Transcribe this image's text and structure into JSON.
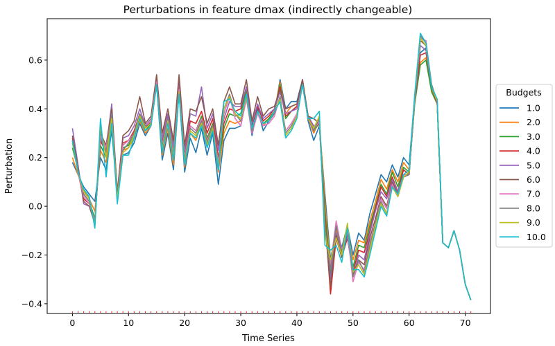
{
  "chart_data": {
    "type": "line",
    "title": "Perturbations in feature dmax (indirectly changeable)",
    "xlabel": "Time Series",
    "ylabel": "Perturbation",
    "xlim": [
      -4.5,
      74.5
    ],
    "ylim": [
      -0.44,
      0.77
    ],
    "xticks": [
      0,
      10,
      20,
      30,
      40,
      50,
      60,
      70
    ],
    "yticks": [
      -0.4,
      -0.2,
      0.0,
      0.2,
      0.4,
      0.6
    ],
    "ytick_labels": [
      "−0.4",
      "−0.2",
      "0.0",
      "0.2",
      "0.4",
      "0.6"
    ],
    "grid": false,
    "red_tick_marks_x_range": [
      0,
      71
    ],
    "legend": {
      "title": "Budgets",
      "placement": "outside-right"
    },
    "x": [
      0,
      1,
      2,
      3,
      4,
      5,
      6,
      7,
      8,
      9,
      10,
      11,
      12,
      13,
      14,
      15,
      16,
      17,
      18,
      19,
      20,
      21,
      22,
      23,
      24,
      25,
      26,
      27,
      28,
      29,
      30,
      31,
      32,
      33,
      34,
      35,
      36,
      37,
      38,
      39,
      40,
      41,
      42,
      43,
      44,
      45,
      46,
      47,
      48,
      49,
      50,
      51,
      52,
      53,
      54,
      55,
      56,
      57,
      58,
      59,
      60,
      61,
      62,
      63,
      64,
      65,
      66,
      67,
      68,
      69,
      70,
      71
    ],
    "series": [
      {
        "name": "1.0",
        "color": "#1f77b4",
        "values": [
          0.18,
          0.13,
          0.08,
          0.05,
          0.02,
          0.2,
          0.15,
          0.31,
          0.05,
          0.21,
          0.22,
          0.26,
          0.34,
          0.29,
          0.33,
          0.5,
          0.19,
          0.3,
          0.15,
          0.47,
          0.14,
          0.28,
          0.22,
          0.32,
          0.21,
          0.3,
          0.09,
          0.27,
          0.32,
          0.32,
          0.33,
          0.46,
          0.29,
          0.4,
          0.31,
          0.35,
          0.38,
          0.52,
          0.4,
          0.43,
          0.43,
          0.52,
          0.35,
          0.27,
          0.33,
          0.05,
          -0.22,
          -0.09,
          -0.17,
          -0.08,
          -0.2,
          -0.11,
          -0.14,
          -0.03,
          0.05,
          0.13,
          0.1,
          0.17,
          0.12,
          0.2,
          0.17,
          0.45,
          0.63,
          0.65,
          0.5,
          0.42,
          -0.15,
          -0.17,
          -0.1,
          -0.18,
          -0.32,
          -0.385
        ]
      },
      {
        "name": "2.0",
        "color": "#ff7f0e",
        "values": [
          0.2,
          0.13,
          0.07,
          0.03,
          -0.02,
          0.23,
          0.18,
          0.33,
          0.04,
          0.23,
          0.24,
          0.28,
          0.35,
          0.3,
          0.33,
          0.51,
          0.21,
          0.32,
          0.17,
          0.48,
          0.16,
          0.3,
          0.27,
          0.34,
          0.24,
          0.32,
          0.14,
          0.3,
          0.35,
          0.34,
          0.35,
          0.47,
          0.31,
          0.39,
          0.33,
          0.36,
          0.39,
          0.51,
          0.38,
          0.41,
          0.42,
          0.51,
          0.36,
          0.3,
          0.35,
          0.02,
          -0.25,
          -0.1,
          -0.19,
          -0.1,
          -0.22,
          -0.14,
          -0.15,
          -0.06,
          0.02,
          0.11,
          0.07,
          0.15,
          0.1,
          0.18,
          0.15,
          0.43,
          0.59,
          0.61,
          0.48,
          0.42,
          -0.15,
          -0.17,
          -0.1,
          -0.18,
          -0.32,
          -0.385
        ]
      },
      {
        "name": "3.0",
        "color": "#2ca02c",
        "values": [
          0.24,
          0.15,
          0.05,
          0.02,
          -0.05,
          0.25,
          0.2,
          0.35,
          0.04,
          0.24,
          0.25,
          0.29,
          0.36,
          0.31,
          0.34,
          0.51,
          0.24,
          0.35,
          0.2,
          0.48,
          0.19,
          0.33,
          0.31,
          0.37,
          0.28,
          0.34,
          0.18,
          0.32,
          0.38,
          0.37,
          0.38,
          0.48,
          0.32,
          0.39,
          0.34,
          0.36,
          0.39,
          0.5,
          0.36,
          0.39,
          0.41,
          0.5,
          0.36,
          0.31,
          0.34,
          -0.02,
          -0.28,
          -0.12,
          -0.2,
          -0.12,
          -0.25,
          -0.16,
          -0.17,
          -0.08,
          0.0,
          0.09,
          0.05,
          0.14,
          0.08,
          0.16,
          0.14,
          0.42,
          0.58,
          0.6,
          0.47,
          0.42,
          -0.15,
          -0.17,
          -0.1,
          -0.18,
          -0.32,
          -0.385
        ]
      },
      {
        "name": "4.0",
        "color": "#d62728",
        "values": [
          0.28,
          0.14,
          0.03,
          0.01,
          -0.06,
          0.27,
          0.22,
          0.38,
          0.05,
          0.26,
          0.27,
          0.31,
          0.38,
          0.32,
          0.35,
          0.52,
          0.26,
          0.37,
          0.23,
          0.51,
          0.21,
          0.35,
          0.34,
          0.39,
          0.3,
          0.36,
          0.2,
          0.34,
          0.4,
          0.39,
          0.4,
          0.49,
          0.33,
          0.41,
          0.35,
          0.37,
          0.4,
          0.49,
          0.37,
          0.39,
          0.41,
          0.52,
          0.37,
          0.32,
          0.34,
          -0.05,
          -0.36,
          -0.13,
          -0.21,
          -0.13,
          -0.27,
          -0.18,
          -0.19,
          -0.1,
          -0.01,
          0.08,
          0.04,
          0.12,
          0.06,
          0.15,
          0.13,
          0.43,
          0.62,
          0.63,
          0.49,
          0.42,
          -0.15,
          -0.17,
          -0.1,
          -0.18,
          -0.32,
          -0.385
        ]
      },
      {
        "name": "5.0",
        "color": "#9467bd",
        "values": [
          0.32,
          0.17,
          0.01,
          0.0,
          -0.07,
          0.28,
          0.23,
          0.42,
          0.06,
          0.28,
          0.29,
          0.33,
          0.4,
          0.33,
          0.36,
          0.52,
          0.28,
          0.38,
          0.25,
          0.52,
          0.23,
          0.38,
          0.37,
          0.49,
          0.32,
          0.38,
          0.23,
          0.36,
          0.43,
          0.41,
          0.41,
          0.49,
          0.34,
          0.42,
          0.36,
          0.38,
          0.4,
          0.47,
          0.38,
          0.39,
          0.4,
          0.51,
          0.37,
          0.33,
          0.34,
          -0.07,
          -0.3,
          -0.11,
          -0.2,
          -0.12,
          -0.29,
          -0.2,
          -0.22,
          -0.11,
          -0.02,
          0.06,
          0.03,
          0.11,
          0.06,
          0.13,
          0.13,
          0.43,
          0.66,
          0.64,
          0.49,
          0.43,
          -0.15,
          -0.17,
          -0.1,
          -0.18,
          -0.32,
          -0.385
        ]
      },
      {
        "name": "6.0",
        "color": "#8c564b",
        "values": [
          0.29,
          0.16,
          0.02,
          0.0,
          -0.07,
          0.3,
          0.25,
          0.4,
          0.06,
          0.29,
          0.31,
          0.35,
          0.45,
          0.34,
          0.37,
          0.54,
          0.3,
          0.4,
          0.27,
          0.54,
          0.25,
          0.4,
          0.39,
          0.45,
          0.34,
          0.4,
          0.25,
          0.43,
          0.49,
          0.42,
          0.42,
          0.52,
          0.35,
          0.45,
          0.37,
          0.4,
          0.41,
          0.48,
          0.4,
          0.41,
          0.42,
          0.52,
          0.37,
          0.36,
          0.34,
          -0.08,
          -0.33,
          -0.12,
          -0.21,
          -0.11,
          -0.28,
          -0.22,
          -0.24,
          -0.13,
          -0.05,
          0.04,
          0.0,
          0.1,
          0.05,
          0.12,
          0.13,
          0.44,
          0.68,
          0.66,
          0.49,
          0.43,
          -0.15,
          -0.17,
          -0.1,
          -0.18,
          -0.32,
          -0.385
        ]
      },
      {
        "name": "7.0",
        "color": "#e377c2",
        "values": [
          0.27,
          0.14,
          0.04,
          0.01,
          -0.06,
          0.29,
          0.24,
          0.37,
          0.05,
          0.25,
          0.27,
          0.3,
          0.37,
          0.33,
          0.35,
          0.51,
          0.25,
          0.36,
          0.22,
          0.48,
          0.2,
          0.33,
          0.31,
          0.36,
          0.27,
          0.33,
          0.18,
          0.38,
          0.45,
          0.36,
          0.33,
          0.44,
          0.3,
          0.38,
          0.33,
          0.34,
          0.37,
          0.45,
          0.31,
          0.34,
          0.38,
          0.5,
          0.36,
          0.31,
          0.35,
          -0.1,
          -0.24,
          -0.06,
          -0.18,
          -0.1,
          -0.31,
          -0.23,
          -0.26,
          -0.15,
          -0.07,
          0.03,
          -0.01,
          0.09,
          0.04,
          0.12,
          0.13,
          0.44,
          0.69,
          0.68,
          0.5,
          0.43,
          -0.15,
          -0.17,
          -0.1,
          -0.18,
          -0.32,
          -0.385
        ]
      },
      {
        "name": "8.0",
        "color": "#7f7f7f",
        "values": [
          0.27,
          0.15,
          0.05,
          0.02,
          -0.07,
          0.31,
          0.22,
          0.38,
          0.05,
          0.23,
          0.26,
          0.3,
          0.38,
          0.33,
          0.34,
          0.5,
          0.24,
          0.36,
          0.21,
          0.47,
          0.19,
          0.32,
          0.3,
          0.35,
          0.26,
          0.33,
          0.16,
          0.4,
          0.46,
          0.38,
          0.35,
          0.45,
          0.31,
          0.39,
          0.34,
          0.35,
          0.38,
          0.45,
          0.3,
          0.33,
          0.37,
          0.5,
          0.36,
          0.31,
          0.36,
          -0.1,
          -0.26,
          -0.08,
          -0.19,
          -0.08,
          -0.29,
          -0.22,
          -0.27,
          -0.16,
          -0.07,
          0.02,
          -0.03,
          0.08,
          0.04,
          0.12,
          0.13,
          0.44,
          0.7,
          0.67,
          0.5,
          0.43,
          -0.15,
          -0.17,
          -0.1,
          -0.18,
          -0.32,
          -0.385
        ]
      },
      {
        "name": "9.0",
        "color": "#bcbd22",
        "values": [
          0.26,
          0.14,
          0.06,
          0.03,
          -0.08,
          0.33,
          0.2,
          0.36,
          0.03,
          0.22,
          0.24,
          0.29,
          0.37,
          0.32,
          0.34,
          0.5,
          0.23,
          0.35,
          0.2,
          0.47,
          0.18,
          0.31,
          0.29,
          0.34,
          0.25,
          0.32,
          0.16,
          0.4,
          0.45,
          0.38,
          0.36,
          0.45,
          0.32,
          0.39,
          0.34,
          0.35,
          0.39,
          0.44,
          0.29,
          0.32,
          0.37,
          0.5,
          0.36,
          0.32,
          0.37,
          -0.12,
          -0.22,
          -0.13,
          -0.2,
          -0.07,
          -0.27,
          -0.24,
          -0.28,
          -0.18,
          -0.08,
          0.01,
          -0.03,
          0.08,
          0.04,
          0.12,
          0.14,
          0.45,
          0.69,
          0.66,
          0.49,
          0.43,
          -0.15,
          -0.17,
          -0.1,
          -0.18,
          -0.32,
          -0.385
        ]
      },
      {
        "name": "10.0",
        "color": "#17becf",
        "values": [
          0.27,
          0.14,
          0.07,
          0.04,
          -0.09,
          0.36,
          0.12,
          0.34,
          0.01,
          0.21,
          0.21,
          0.28,
          0.36,
          0.31,
          0.33,
          0.5,
          0.22,
          0.34,
          0.19,
          0.46,
          0.17,
          0.3,
          0.28,
          0.33,
          0.24,
          0.31,
          0.15,
          0.43,
          0.44,
          0.39,
          0.37,
          0.46,
          0.32,
          0.39,
          0.34,
          0.35,
          0.39,
          0.43,
          0.28,
          0.31,
          0.36,
          0.5,
          0.36,
          0.36,
          0.39,
          -0.16,
          -0.18,
          -0.16,
          -0.23,
          -0.09,
          -0.26,
          -0.26,
          -0.29,
          -0.2,
          -0.1,
          0.0,
          -0.04,
          0.08,
          0.05,
          0.13,
          0.15,
          0.46,
          0.71,
          0.67,
          0.49,
          0.44,
          -0.15,
          -0.17,
          -0.1,
          -0.18,
          -0.32,
          -0.385
        ]
      }
    ]
  }
}
